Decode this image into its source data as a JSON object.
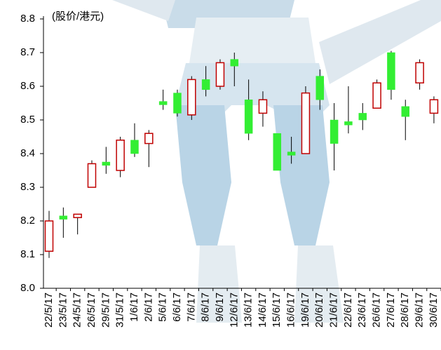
{
  "chart_data": {
    "type": "candlestick",
    "y_label": "(股价/港元)",
    "categories": [
      "22/5/17",
      "23/5/17",
      "24/5/17",
      "26/5/17",
      "29/5/17",
      "31/5/17",
      "1/6/17",
      "2/6/17",
      "5/6/17",
      "6/6/17",
      "7/6/17",
      "8/6/17",
      "9/6/17",
      "12/6/17",
      "13/6/17",
      "14/6/17",
      "15/6/17",
      "16/6/17",
      "19/6/17",
      "20/6/17",
      "21/6/17",
      "22/6/17",
      "23/6/17",
      "26/6/17",
      "27/6/17",
      "28/6/17",
      "29/6/17",
      "30/6/17"
    ],
    "open": [
      8.11,
      8.215,
      8.21,
      8.3,
      8.375,
      8.35,
      8.44,
      8.43,
      8.555,
      8.58,
      8.515,
      8.62,
      8.6,
      8.68,
      8.56,
      8.52,
      8.46,
      8.405,
      8.4,
      8.63,
      8.5,
      8.495,
      8.52,
      8.535,
      8.7,
      8.54,
      8.61,
      8.52
    ],
    "high": [
      8.23,
      8.24,
      8.22,
      8.38,
      8.42,
      8.45,
      8.49,
      8.47,
      8.59,
      8.59,
      8.63,
      8.66,
      8.68,
      8.7,
      8.62,
      8.585,
      8.46,
      8.45,
      8.6,
      8.65,
      8.55,
      8.6,
      8.55,
      8.62,
      8.705,
      8.56,
      8.68,
      8.57
    ],
    "low": [
      8.09,
      8.15,
      8.16,
      8.3,
      8.34,
      8.33,
      8.39,
      8.36,
      8.53,
      8.51,
      8.5,
      8.57,
      8.59,
      8.6,
      8.44,
      8.48,
      8.35,
      8.37,
      8.4,
      8.53,
      8.35,
      8.46,
      8.47,
      8.535,
      8.56,
      8.44,
      8.59,
      8.49
    ],
    "close": [
      8.2,
      8.205,
      8.22,
      8.37,
      8.365,
      8.44,
      8.4,
      8.46,
      8.545,
      8.52,
      8.62,
      8.59,
      8.67,
      8.66,
      8.46,
      8.56,
      8.35,
      8.395,
      8.58,
      8.56,
      8.43,
      8.485,
      8.5,
      8.61,
      8.59,
      8.51,
      8.67,
      8.56
    ],
    "up_color": "#c00000",
    "down_color": "#33ee33",
    "ylim": [
      8.0,
      8.8
    ],
    "yticks": [
      {
        "value": 8,
        "label": "8.0"
      },
      8.1,
      8.2,
      8.3,
      8.4,
      8.5,
      8.6,
      8.7,
      8.8
    ]
  }
}
